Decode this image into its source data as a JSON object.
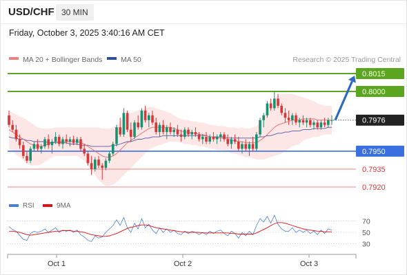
{
  "header": {
    "symbol": "USD/CHF",
    "timeframe": "30 MIN",
    "datetime": "Friday, October 3, 2025 3:40:16 AM CET"
  },
  "legend": {
    "ma20_label": "MA 20 + Bollinger Bands",
    "ma50_label": "MA 50",
    "credit": "Research © 2025 Trading Central"
  },
  "colors": {
    "resistance": "#5ca51e",
    "pivot": "#3a6fe0",
    "support": "#f08080",
    "bull_candle": "#1a9070",
    "bear_candle": "#d43838",
    "arrow": "#2e6bbf",
    "ma20": "#e56b6b",
    "ma50": "#4d5aa8",
    "bollinger_fill": "#fde3e3",
    "rsi_line": "#4a7fd6",
    "rsi_ma": "#e01010"
  },
  "levels": [
    {
      "label": "0.8015",
      "role": "resistance"
    },
    {
      "label": "0.8000",
      "role": "resistance"
    },
    {
      "label": "0.7976",
      "role": "last"
    },
    {
      "label": "0.7950",
      "role": "pivot"
    },
    {
      "label": "0.7935",
      "role": "support"
    },
    {
      "label": "0.7920",
      "role": "support"
    }
  ],
  "rsi": {
    "legend_rsi": "RSI",
    "legend_ma": "9MA",
    "ticks": [
      "70",
      "50",
      "30"
    ]
  },
  "xaxis": {
    "labels": [
      "Oct 1",
      "Oct 2",
      "Oct 3"
    ]
  },
  "chart_data": {
    "type": "candlestick",
    "price_scale": {
      "min": 0.7915,
      "max": 0.8025
    },
    "last_price": 0.7976,
    "ohlc": [
      [
        0.798,
        0.7984,
        0.797,
        0.7972
      ],
      [
        0.7972,
        0.7976,
        0.7966,
        0.7968
      ],
      [
        0.7968,
        0.7972,
        0.7958,
        0.796
      ],
      [
        0.796,
        0.7964,
        0.7952,
        0.7955
      ],
      [
        0.7955,
        0.7958,
        0.7944,
        0.7946
      ],
      [
        0.7946,
        0.795,
        0.794,
        0.7942
      ],
      [
        0.7942,
        0.7954,
        0.794,
        0.7952
      ],
      [
        0.7952,
        0.7958,
        0.795,
        0.7956
      ],
      [
        0.7956,
        0.796,
        0.795,
        0.7952
      ],
      [
        0.7952,
        0.7956,
        0.7948,
        0.7954
      ],
      [
        0.7954,
        0.7962,
        0.7952,
        0.796
      ],
      [
        0.796,
        0.7964,
        0.7952,
        0.7955
      ],
      [
        0.7955,
        0.796,
        0.7948,
        0.7958
      ],
      [
        0.7958,
        0.7966,
        0.7956,
        0.7962
      ],
      [
        0.7962,
        0.7964,
        0.7954,
        0.7956
      ],
      [
        0.7956,
        0.7962,
        0.7952,
        0.796
      ],
      [
        0.796,
        0.7964,
        0.7956,
        0.7958
      ],
      [
        0.7958,
        0.7962,
        0.7954,
        0.796
      ],
      [
        0.796,
        0.7963,
        0.7955,
        0.7957
      ],
      [
        0.7957,
        0.7962,
        0.7955,
        0.796
      ],
      [
        0.796,
        0.7962,
        0.795,
        0.7952
      ],
      [
        0.7952,
        0.7956,
        0.7946,
        0.7948
      ],
      [
        0.7948,
        0.795,
        0.7938,
        0.794
      ],
      [
        0.794,
        0.7946,
        0.793,
        0.7935
      ],
      [
        0.7935,
        0.7945,
        0.7933,
        0.7943
      ],
      [
        0.7943,
        0.7946,
        0.7936,
        0.7938
      ],
      [
        0.7938,
        0.794,
        0.7926,
        0.7936
      ],
      [
        0.7936,
        0.7944,
        0.7934,
        0.7942
      ],
      [
        0.7942,
        0.795,
        0.794,
        0.7948
      ],
      [
        0.7948,
        0.7958,
        0.7946,
        0.7956
      ],
      [
        0.7956,
        0.7972,
        0.7954,
        0.797
      ],
      [
        0.797,
        0.7978,
        0.7962,
        0.7964
      ],
      [
        0.7964,
        0.7986,
        0.7962,
        0.7982
      ],
      [
        0.7982,
        0.7984,
        0.7966,
        0.7968
      ],
      [
        0.7968,
        0.7974,
        0.7958,
        0.7962
      ],
      [
        0.7962,
        0.7976,
        0.796,
        0.7974
      ],
      [
        0.7974,
        0.798,
        0.7968,
        0.797
      ],
      [
        0.797,
        0.7986,
        0.7968,
        0.7984
      ],
      [
        0.7984,
        0.7988,
        0.7974,
        0.7976
      ],
      [
        0.7976,
        0.7982,
        0.797,
        0.798
      ],
      [
        0.798,
        0.7984,
        0.7972,
        0.7974
      ],
      [
        0.7974,
        0.7978,
        0.7964,
        0.7966
      ],
      [
        0.7966,
        0.7974,
        0.7962,
        0.7972
      ],
      [
        0.7972,
        0.7976,
        0.7964,
        0.7966
      ],
      [
        0.7966,
        0.7972,
        0.796,
        0.797
      ],
      [
        0.797,
        0.7974,
        0.7964,
        0.7966
      ],
      [
        0.7966,
        0.797,
        0.7962,
        0.7968
      ],
      [
        0.7968,
        0.7972,
        0.7962,
        0.7964
      ],
      [
        0.7964,
        0.7968,
        0.7958,
        0.7962
      ],
      [
        0.7962,
        0.797,
        0.796,
        0.7968
      ],
      [
        0.7968,
        0.797,
        0.7962,
        0.7964
      ],
      [
        0.7964,
        0.7968,
        0.796,
        0.7966
      ],
      [
        0.7966,
        0.797,
        0.7962,
        0.7964
      ],
      [
        0.7964,
        0.7966,
        0.7958,
        0.796
      ],
      [
        0.796,
        0.7964,
        0.7956,
        0.7962
      ],
      [
        0.7962,
        0.7966,
        0.7956,
        0.7958
      ],
      [
        0.7958,
        0.7964,
        0.7956,
        0.7962
      ],
      [
        0.7962,
        0.7966,
        0.7958,
        0.796
      ],
      [
        0.796,
        0.7964,
        0.7956,
        0.7962
      ],
      [
        0.7962,
        0.7966,
        0.7958,
        0.7964
      ],
      [
        0.7964,
        0.7966,
        0.7958,
        0.796
      ],
      [
        0.796,
        0.7964,
        0.7954,
        0.7956
      ],
      [
        0.7956,
        0.7962,
        0.7952,
        0.796
      ],
      [
        0.796,
        0.7964,
        0.7956,
        0.7958
      ],
      [
        0.7958,
        0.7962,
        0.795,
        0.7952
      ],
      [
        0.7952,
        0.7958,
        0.7948,
        0.7956
      ],
      [
        0.7956,
        0.796,
        0.795,
        0.7952
      ],
      [
        0.7952,
        0.7958,
        0.7946,
        0.7956
      ],
      [
        0.7956,
        0.7962,
        0.795,
        0.7952
      ],
      [
        0.7952,
        0.7966,
        0.795,
        0.7964
      ],
      [
        0.7964,
        0.7978,
        0.7962,
        0.7976
      ],
      [
        0.7976,
        0.7982,
        0.797,
        0.798
      ],
      [
        0.798,
        0.7992,
        0.7978,
        0.799
      ],
      [
        0.799,
        0.7994,
        0.7984,
        0.7986
      ],
      [
        0.7986,
        0.8,
        0.7984,
        0.7994
      ],
      [
        0.7994,
        0.7998,
        0.7986,
        0.7988
      ],
      [
        0.7988,
        0.799,
        0.798,
        0.7982
      ],
      [
        0.7982,
        0.7986,
        0.7974,
        0.7978
      ],
      [
        0.7978,
        0.7984,
        0.7972,
        0.7976
      ],
      [
        0.7976,
        0.7982,
        0.7972,
        0.798
      ],
      [
        0.798,
        0.7982,
        0.7972,
        0.7974
      ],
      [
        0.7974,
        0.7978,
        0.797,
        0.7976
      ],
      [
        0.7976,
        0.798,
        0.7972,
        0.7974
      ],
      [
        0.7974,
        0.7978,
        0.797,
        0.7976
      ],
      [
        0.7976,
        0.7978,
        0.797,
        0.7972
      ],
      [
        0.7972,
        0.7976,
        0.7968,
        0.7974
      ],
      [
        0.7974,
        0.7976,
        0.7968,
        0.797
      ],
      [
        0.797,
        0.7976,
        0.7968,
        0.7974
      ],
      [
        0.7974,
        0.7978,
        0.797,
        0.7972
      ],
      [
        0.7972,
        0.7978,
        0.797,
        0.7976
      ],
      [
        0.7976,
        0.798,
        0.7972,
        0.7976
      ]
    ],
    "ma20": [
      0.7968,
      0.7966,
      0.7964,
      0.7962,
      0.796,
      0.7958,
      0.7956,
      0.7955,
      0.7954,
      0.7954,
      0.7955,
      0.7956,
      0.7957,
      0.7958,
      0.7958,
      0.7958,
      0.7958,
      0.7958,
      0.7958,
      0.7958,
      0.7957,
      0.7956,
      0.7954,
      0.7952,
      0.795,
      0.7948,
      0.7946,
      0.7945,
      0.7945,
      0.7946,
      0.7948,
      0.7951,
      0.7954,
      0.7957,
      0.7959,
      0.7961,
      0.7963,
      0.7965,
      0.7967,
      0.7969,
      0.797,
      0.797,
      0.797,
      0.797,
      0.797,
      0.797,
      0.7969,
      0.7968,
      0.7967,
      0.7966,
      0.7966,
      0.7965,
      0.7965,
      0.7964,
      0.7964,
      0.7963,
      0.7962,
      0.7962,
      0.7961,
      0.7961,
      0.7961,
      0.796,
      0.7959,
      0.7959,
      0.7958,
      0.7958,
      0.7957,
      0.7957,
      0.7957,
      0.7957,
      0.7959,
      0.7961,
      0.7964,
      0.7967,
      0.797,
      0.7972,
      0.7973,
      0.7974,
      0.7975,
      0.7976,
      0.7976,
      0.7976,
      0.7977,
      0.7977,
      0.7977,
      0.7977,
      0.7976,
      0.7976,
      0.7976,
      0.7976,
      0.7976
    ],
    "ma50": [
      0.7962,
      0.7961,
      0.7961,
      0.796,
      0.796,
      0.7959,
      0.7959,
      0.7958,
      0.7958,
      0.7958,
      0.7958,
      0.7957,
      0.7957,
      0.7957,
      0.7957,
      0.7957,
      0.7957,
      0.7956,
      0.7956,
      0.7956,
      0.7955,
      0.7955,
      0.7955,
      0.7954,
      0.7954,
      0.7954,
      0.7954,
      0.7954,
      0.7954,
      0.7955,
      0.7955,
      0.7956,
      0.7957,
      0.7958,
      0.7958,
      0.7959,
      0.796,
      0.796,
      0.7961,
      0.7961,
      0.7962,
      0.7962,
      0.7962,
      0.7963,
      0.7963,
      0.7963,
      0.7963,
      0.7963,
      0.7963,
      0.7963,
      0.7963,
      0.7963,
      0.7963,
      0.7963,
      0.7963,
      0.7963,
      0.7962,
      0.7962,
      0.7962,
      0.7962,
      0.7962,
      0.7961,
      0.7961,
      0.7961,
      0.7961,
      0.7961,
      0.7961,
      0.7961,
      0.7961,
      0.7961,
      0.7962,
      0.7962,
      0.7963,
      0.7963,
      0.7964,
      0.7965,
      0.7965,
      0.7966,
      0.7966,
      0.7967,
      0.7967,
      0.7967,
      0.7968,
      0.7968,
      0.7968,
      0.7969,
      0.7969,
      0.7969,
      0.7969,
      0.797,
      0.797
    ],
    "bb_width": [
      0.0016,
      0.0016,
      0.0017,
      0.0017,
      0.0018,
      0.0018,
      0.0018,
      0.0017,
      0.0016,
      0.0015,
      0.0014,
      0.0013,
      0.0012,
      0.0012,
      0.0012,
      0.0012,
      0.0012,
      0.0012,
      0.0012,
      0.0012,
      0.0013,
      0.0014,
      0.0016,
      0.0018,
      0.002,
      0.0022,
      0.0023,
      0.0024,
      0.0024,
      0.0024,
      0.0024,
      0.0024,
      0.0024,
      0.0024,
      0.0023,
      0.0022,
      0.0021,
      0.002,
      0.0019,
      0.0018,
      0.0017,
      0.0016,
      0.0015,
      0.0014,
      0.0013,
      0.0012,
      0.0011,
      0.001,
      0.001,
      0.001,
      0.001,
      0.001,
      0.001,
      0.001,
      0.001,
      0.001,
      0.001,
      0.001,
      0.001,
      0.001,
      0.001,
      0.001,
      0.0011,
      0.0011,
      0.0011,
      0.0012,
      0.0012,
      0.0012,
      0.0013,
      0.0014,
      0.0016,
      0.0018,
      0.002,
      0.0022,
      0.0024,
      0.0025,
      0.0025,
      0.0024,
      0.0023,
      0.0022,
      0.0021,
      0.002,
      0.0018,
      0.0017,
      0.0016,
      0.0015,
      0.0014,
      0.0013,
      0.0012,
      0.0012,
      0.0012
    ],
    "rsi_values": [
      60,
      55,
      52,
      45,
      38,
      36,
      48,
      52,
      50,
      52,
      56,
      50,
      54,
      58,
      50,
      54,
      52,
      54,
      50,
      54,
      46,
      42,
      36,
      34,
      44,
      40,
      42,
      50,
      56,
      62,
      72,
      62,
      76,
      58,
      50,
      66,
      56,
      74,
      58,
      64,
      54,
      48,
      58,
      50,
      56,
      50,
      54,
      48,
      46,
      52,
      48,
      52,
      50,
      46,
      50,
      46,
      52,
      48,
      52,
      54,
      48,
      44,
      52,
      48,
      40,
      50,
      44,
      52,
      46,
      62,
      74,
      68,
      78,
      66,
      80,
      64,
      56,
      52,
      52,
      58,
      50,
      54,
      50,
      54,
      48,
      52,
      46,
      54,
      48,
      56,
      54
    ],
    "rsi_ma": [
      52,
      52,
      51,
      50,
      48,
      46,
      45,
      46,
      47,
      48,
      49,
      50,
      51,
      52,
      52,
      53,
      53,
      53,
      52,
      52,
      51,
      50,
      48,
      46,
      45,
      44,
      43,
      43,
      44,
      46,
      48,
      51,
      54,
      57,
      59,
      60,
      62,
      63,
      63,
      62,
      60,
      58,
      57,
      56,
      55,
      54,
      53,
      52,
      51,
      51,
      50,
      50,
      50,
      50,
      49,
      49,
      49,
      49,
      49,
      49,
      49,
      49,
      48,
      48,
      47,
      47,
      47,
      47,
      47,
      49,
      52,
      55,
      58,
      62,
      65,
      67,
      67,
      66,
      64,
      62,
      60,
      58,
      56,
      55,
      54,
      53,
      52,
      52,
      51,
      51,
      51
    ],
    "rsi_ylim": [
      20,
      80
    ]
  }
}
